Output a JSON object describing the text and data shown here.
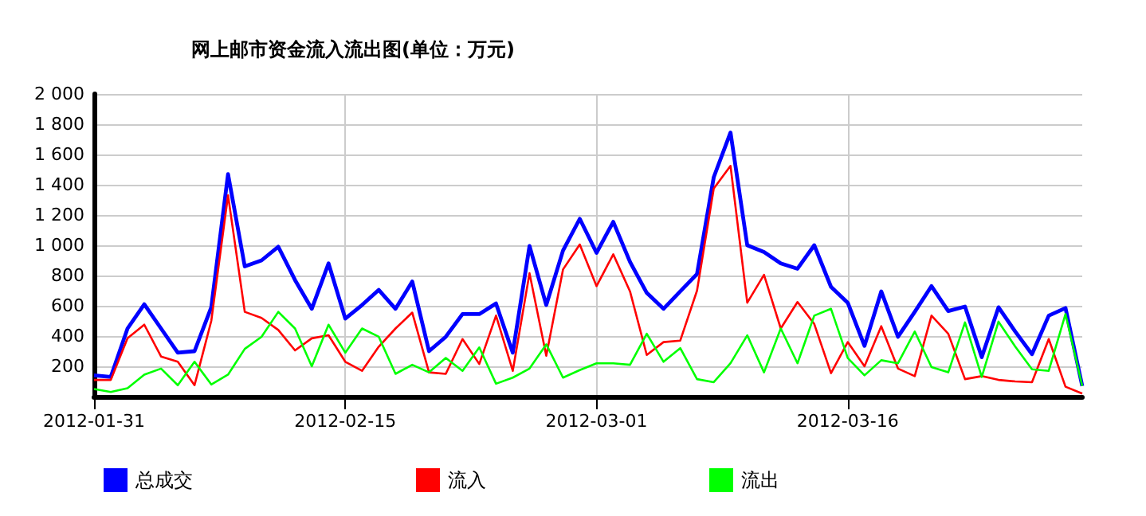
{
  "chart_data": {
    "type": "line",
    "title": "网上邮市资金流入流出图(单位：万元)",
    "x": [
      "2012-01-31",
      "2012-02-01",
      "2012-02-02",
      "2012-02-03",
      "2012-02-04",
      "2012-02-05",
      "2012-02-06",
      "2012-02-07",
      "2012-02-08",
      "2012-02-09",
      "2012-02-10",
      "2012-02-11",
      "2012-02-12",
      "2012-02-13",
      "2012-02-14",
      "2012-02-15",
      "2012-02-16",
      "2012-02-17",
      "2012-02-18",
      "2012-02-19",
      "2012-02-20",
      "2012-02-21",
      "2012-02-22",
      "2012-02-23",
      "2012-02-24",
      "2012-02-25",
      "2012-02-26",
      "2012-02-27",
      "2012-02-28",
      "2012-02-29",
      "2012-03-01",
      "2012-03-02",
      "2012-03-03",
      "2012-03-04",
      "2012-03-05",
      "2012-03-06",
      "2012-03-07",
      "2012-03-08",
      "2012-03-09",
      "2012-03-10",
      "2012-03-11",
      "2012-03-12",
      "2012-03-13",
      "2012-03-14",
      "2012-03-15",
      "2012-03-16",
      "2012-03-17",
      "2012-03-18",
      "2012-03-19",
      "2012-03-20",
      "2012-03-21",
      "2012-03-22",
      "2012-03-23",
      "2012-03-24",
      "2012-03-25",
      "2012-03-26",
      "2012-03-27",
      "2012-03-28",
      "2012-03-29",
      "2012-03-30"
    ],
    "series": [
      {
        "name": "总成交",
        "color": "#0000ff",
        "values": [
          140,
          130,
          450,
          610,
          450,
          290,
          300,
          590,
          1470,
          860,
          900,
          990,
          770,
          580,
          880,
          515,
          605,
          705,
          580,
          760,
          300,
          395,
          545,
          545,
          615,
          290,
          995,
          605,
          965,
          1175,
          950,
          1155,
          890,
          685,
          580,
          695,
          810,
          1450,
          1745,
          1000,
          955,
          880,
          845,
          1000,
          725,
          620,
          335,
          695,
          395,
          560,
          730,
          565,
          595,
          260,
          590,
          430,
          280,
          535,
          585,
          70
        ]
      },
      {
        "name": "流入",
        "color": "#ff0000",
        "values": [
          110,
          110,
          385,
          475,
          265,
          230,
          75,
          500,
          1330,
          560,
          520,
          440,
          305,
          385,
          405,
          230,
          170,
          330,
          450,
          555,
          160,
          150,
          380,
          215,
          535,
          170,
          815,
          270,
          840,
          1005,
          730,
          940,
          695,
          275,
          360,
          370,
          700,
          1375,
          1525,
          620,
          805,
          450,
          625,
          480,
          155,
          360,
          200,
          465,
          185,
          135,
          535,
          415,
          115,
          135,
          110,
          100,
          95,
          380,
          65,
          20
        ]
      },
      {
        "name": "流出",
        "color": "#00ff00",
        "values": [
          50,
          30,
          55,
          145,
          185,
          75,
          230,
          80,
          145,
          315,
          395,
          560,
          450,
          200,
          475,
          290,
          450,
          395,
          150,
          210,
          160,
          255,
          170,
          325,
          85,
          125,
          185,
          345,
          125,
          175,
          220,
          220,
          210,
          415,
          230,
          320,
          115,
          95,
          220,
          405,
          160,
          450,
          220,
          535,
          580,
          255,
          140,
          240,
          220,
          430,
          195,
          160,
          490,
          130,
          495,
          330,
          180,
          170,
          545,
          70
        ]
      }
    ],
    "xlim": [
      "2012-01-31",
      "2012-03-30"
    ],
    "xticks": [
      "2012-01-31",
      "2012-02-15",
      "2012-03-01",
      "2012-03-16"
    ],
    "ylim": [
      0,
      2000
    ],
    "yticks": [
      {
        "value": 200,
        "label": "200"
      },
      {
        "value": 400,
        "label": "400"
      },
      {
        "value": 600,
        "label": "600"
      },
      {
        "value": 800,
        "label": "800"
      },
      {
        "value": 1000,
        "label": "1 000"
      },
      {
        "value": 1200,
        "label": "1 200"
      },
      {
        "value": 1400,
        "label": "1 400"
      },
      {
        "value": 1600,
        "label": "1 600"
      },
      {
        "value": 1800,
        "label": "1 800"
      },
      {
        "value": 2000,
        "label": "2 000"
      }
    ],
    "grid": true,
    "legend": "bottom",
    "marker": "none",
    "line_style": "solid"
  }
}
